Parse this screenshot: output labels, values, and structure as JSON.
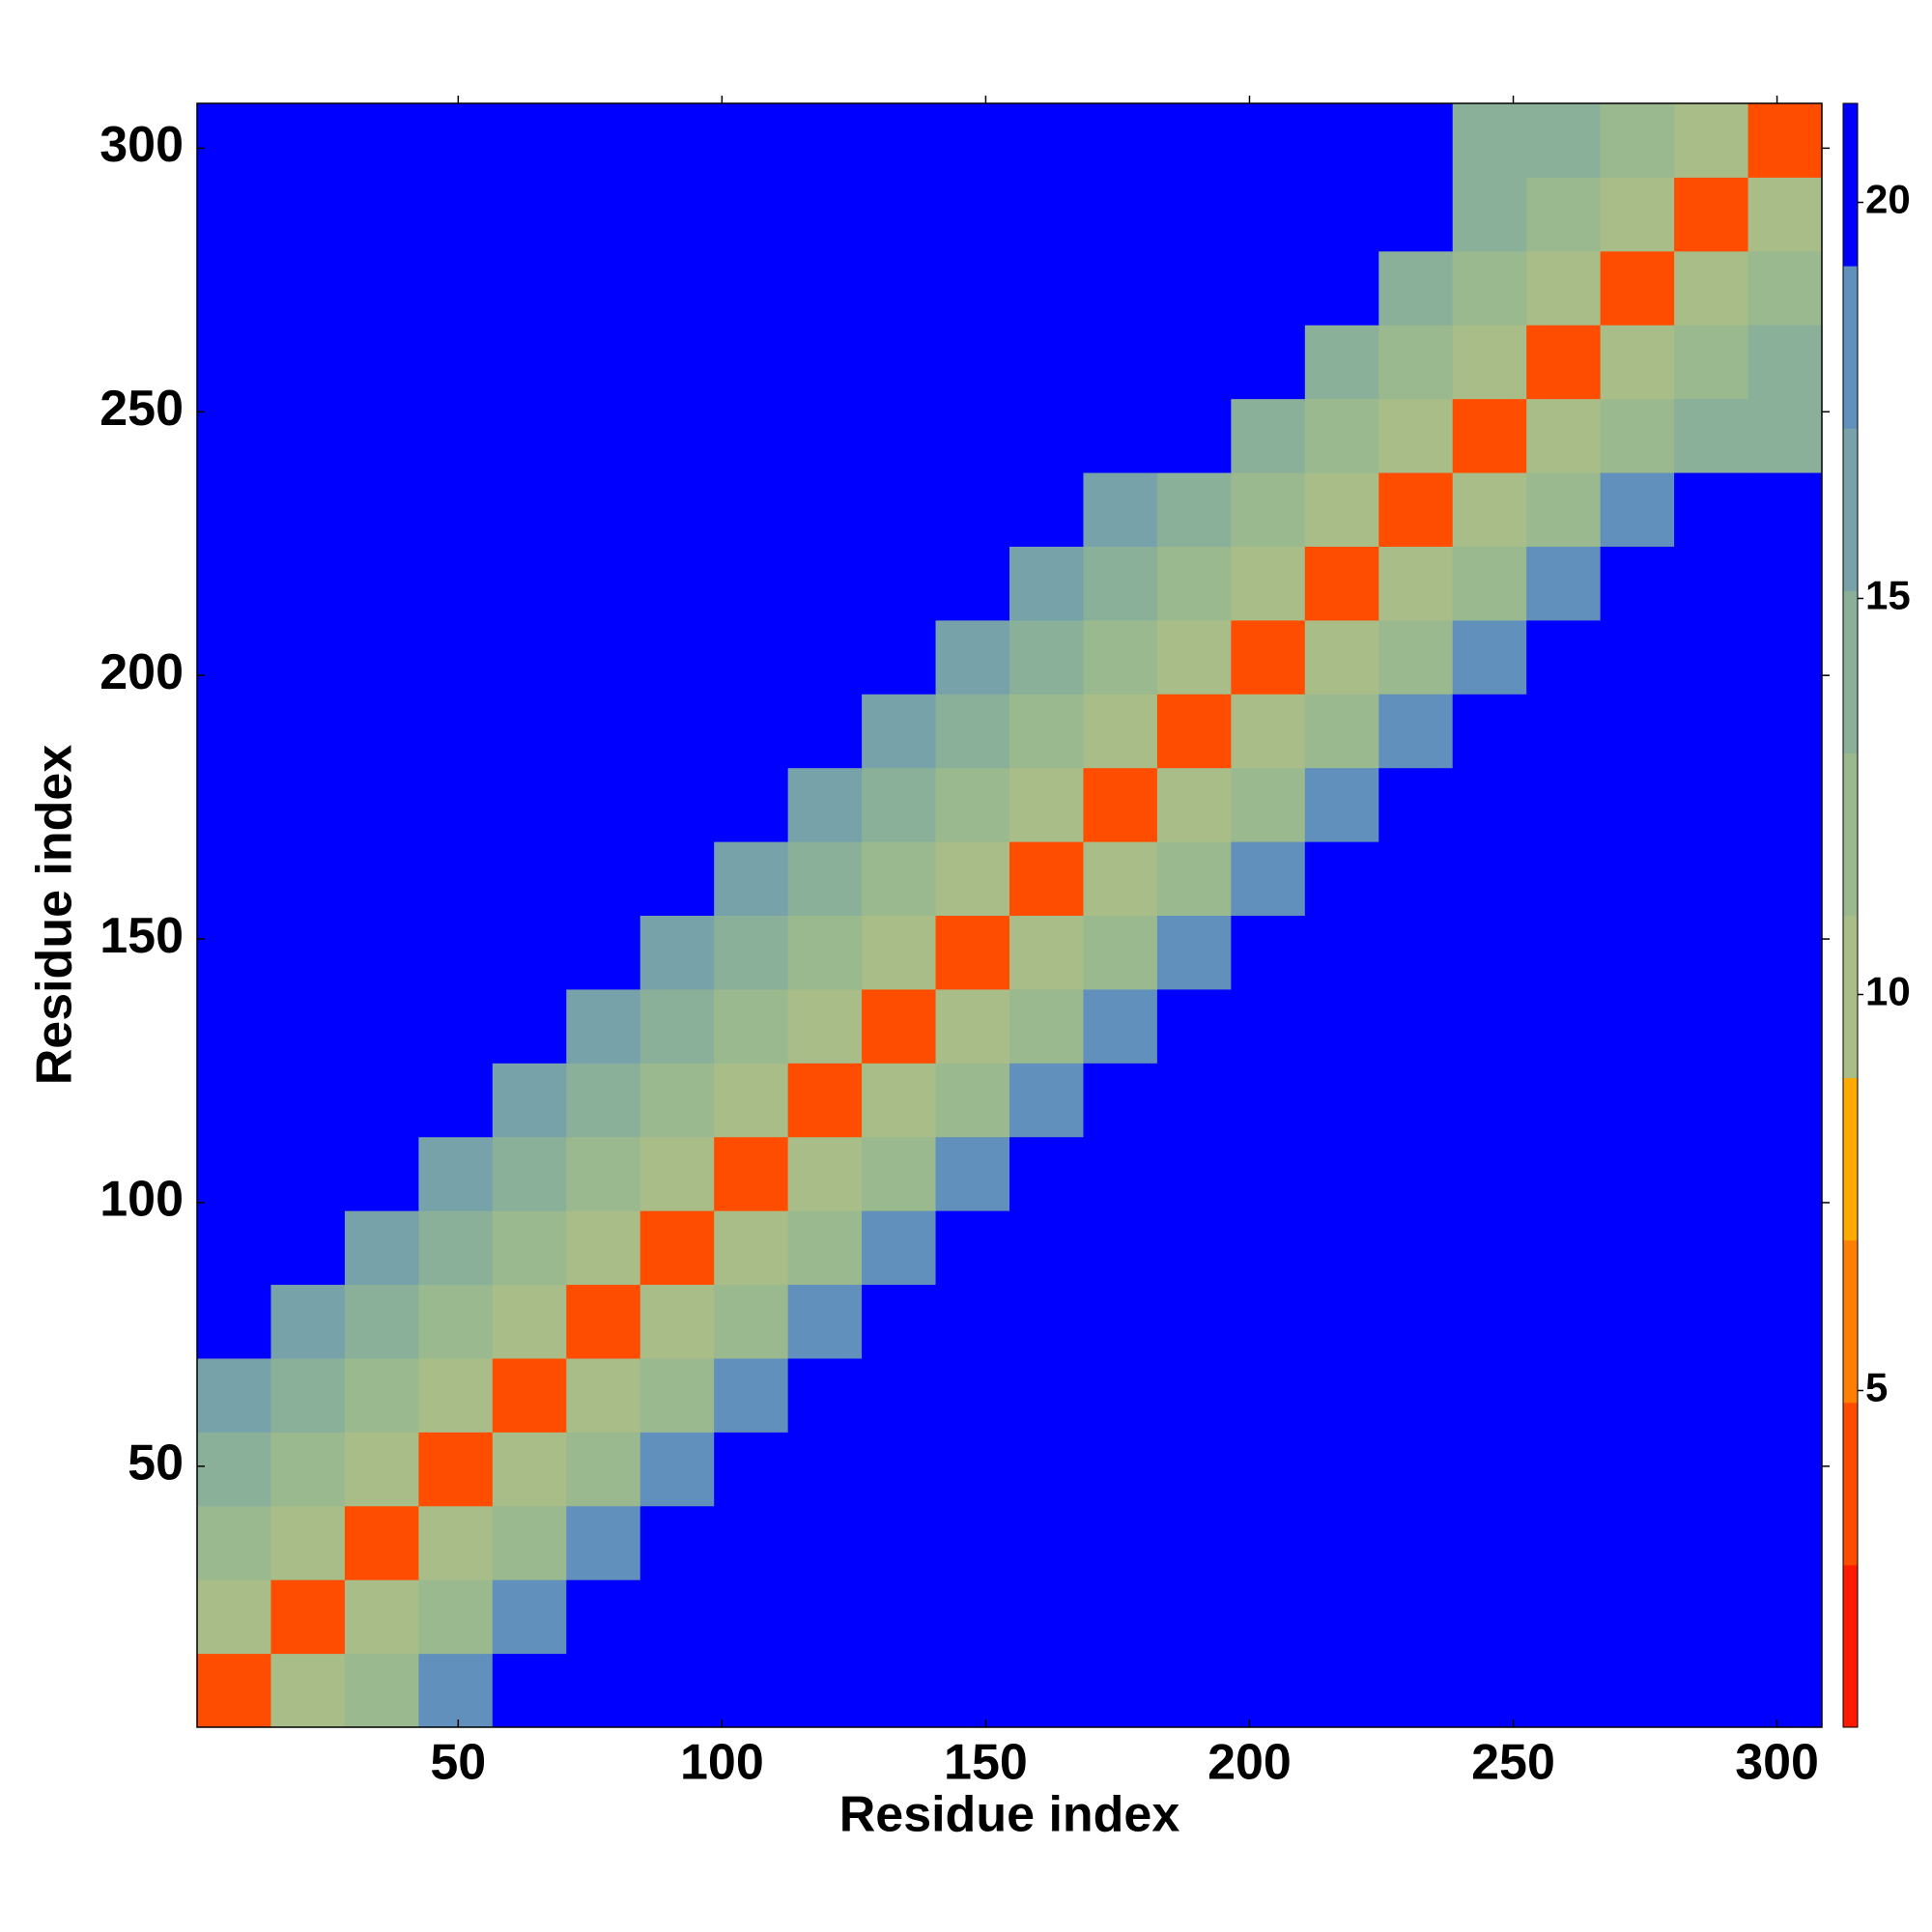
{
  "chart_data": {
    "type": "heatmap",
    "xlabel": "Residue index",
    "ylabel": "Residue index",
    "xlim": [
      0.5,
      308.5
    ],
    "ylim": [
      0.5,
      308.5
    ],
    "xticks": [
      50,
      100,
      150,
      200,
      250,
      300
    ],
    "yticks": [
      50,
      100,
      150,
      200,
      250,
      300
    ],
    "bins": [
      0.5,
      14.5,
      28.5,
      42.5,
      56.5,
      70.5,
      84.5,
      98.5,
      112.5,
      126.5,
      140.5,
      154.5,
      168.5,
      182.5,
      196.5,
      210.5,
      224.5,
      238.5,
      252.5,
      266.5,
      280.5,
      294.5,
      308.5
    ],
    "z": [
      [
        3,
        10,
        12,
        18,
        20,
        21,
        21,
        21,
        21,
        21,
        21,
        21,
        21,
        21,
        21,
        21,
        21,
        21,
        21,
        21,
        21,
        21
      ],
      [
        10,
        3,
        10,
        12,
        18,
        20,
        21,
        21,
        21,
        21,
        21,
        21,
        21,
        21,
        21,
        21,
        21,
        21,
        21,
        21,
        21,
        21
      ],
      [
        12,
        10,
        3,
        10,
        12,
        18,
        20,
        21,
        21,
        21,
        21,
        21,
        21,
        21,
        21,
        21,
        21,
        21,
        21,
        21,
        21,
        21
      ],
      [
        15,
        12,
        10,
        3,
        10,
        12,
        18,
        20,
        21,
        21,
        21,
        21,
        21,
        21,
        21,
        21,
        21,
        21,
        21,
        21,
        21,
        21
      ],
      [
        17,
        15,
        12,
        10,
        3,
        10,
        12,
        18,
        20,
        21,
        21,
        21,
        21,
        21,
        21,
        21,
        21,
        21,
        21,
        21,
        21,
        21
      ],
      [
        21,
        17,
        15,
        12,
        10,
        3,
        10,
        12,
        18,
        20,
        21,
        21,
        21,
        21,
        21,
        21,
        21,
        21,
        21,
        21,
        21,
        21
      ],
      [
        21,
        21,
        17,
        15,
        12,
        10,
        3,
        10,
        12,
        18,
        20,
        21,
        21,
        21,
        21,
        21,
        21,
        21,
        21,
        21,
        21,
        21
      ],
      [
        21,
        21,
        21,
        17,
        15,
        12,
        10,
        3,
        10,
        12,
        18,
        20,
        21,
        21,
        21,
        21,
        21,
        21,
        21,
        21,
        21,
        21
      ],
      [
        21,
        21,
        21,
        21,
        17,
        15,
        12,
        10,
        3,
        10,
        12,
        18,
        20,
        21,
        21,
        21,
        21,
        21,
        21,
        21,
        21,
        21
      ],
      [
        21,
        21,
        21,
        21,
        21,
        17,
        15,
        12,
        10,
        3,
        10,
        12,
        18,
        20,
        21,
        21,
        21,
        21,
        21,
        21,
        21,
        21
      ],
      [
        21,
        21,
        21,
        21,
        21,
        21,
        17,
        15,
        12,
        10,
        3,
        10,
        12,
        18,
        20,
        21,
        21,
        21,
        21,
        21,
        21,
        21
      ],
      [
        21,
        21,
        21,
        21,
        21,
        21,
        21,
        17,
        15,
        12,
        10,
        3,
        10,
        12,
        18,
        21,
        21,
        21,
        21,
        21,
        21,
        21
      ],
      [
        21,
        21,
        21,
        21,
        21,
        21,
        21,
        21,
        17,
        15,
        12,
        10,
        3,
        10,
        12,
        18,
        21,
        21,
        21,
        21,
        21,
        21
      ],
      [
        21,
        21,
        21,
        21,
        21,
        21,
        21,
        21,
        21,
        17,
        15,
        12,
        10,
        3,
        10,
        12,
        18,
        21,
        21,
        21,
        21,
        21
      ],
      [
        21,
        21,
        21,
        21,
        21,
        21,
        21,
        21,
        21,
        21,
        17,
        15,
        12,
        10,
        3,
        10,
        12,
        18,
        21,
        21,
        21,
        21
      ],
      [
        21,
        21,
        21,
        21,
        21,
        21,
        21,
        21,
        21,
        21,
        21,
        17,
        15,
        12,
        10,
        3,
        10,
        12,
        18,
        21,
        21,
        21
      ],
      [
        21,
        21,
        21,
        21,
        21,
        21,
        21,
        21,
        21,
        21,
        21,
        21,
        17,
        15,
        12,
        10,
        3,
        10,
        12,
        18,
        21,
        21
      ],
      [
        21,
        21,
        21,
        21,
        21,
        21,
        21,
        21,
        21,
        21,
        21,
        21,
        21,
        21,
        15,
        12,
        10,
        3,
        10,
        12,
        15,
        15
      ],
      [
        21,
        21,
        21,
        21,
        21,
        21,
        21,
        21,
        21,
        21,
        21,
        21,
        21,
        21,
        21,
        15,
        12,
        10,
        3,
        10,
        12,
        15
      ],
      [
        21,
        21,
        21,
        21,
        21,
        21,
        21,
        21,
        21,
        21,
        21,
        21,
        21,
        21,
        21,
        21,
        15,
        12,
        10,
        3,
        10,
        12
      ],
      [
        21,
        21,
        21,
        21,
        21,
        21,
        21,
        21,
        21,
        21,
        21,
        21,
        21,
        21,
        21,
        21,
        21,
        15,
        12,
        10,
        3,
        10
      ],
      [
        21,
        21,
        21,
        21,
        21,
        21,
        21,
        21,
        21,
        21,
        21,
        21,
        21,
        21,
        21,
        21,
        21,
        15,
        15,
        12,
        10,
        3
      ]
    ],
    "colorbar": {
      "lim": [
        0.75,
        21.25
      ],
      "ticks": [
        5,
        10,
        15,
        20
      ],
      "colors": [
        "#ff1a00",
        "#ff4d00",
        "#ff8000",
        "#ffaa00",
        "#a8bd88",
        "#9ab98e",
        "#8ab09a",
        "#78a2aa",
        "#6090bb",
        "#0000ff"
      ]
    }
  }
}
